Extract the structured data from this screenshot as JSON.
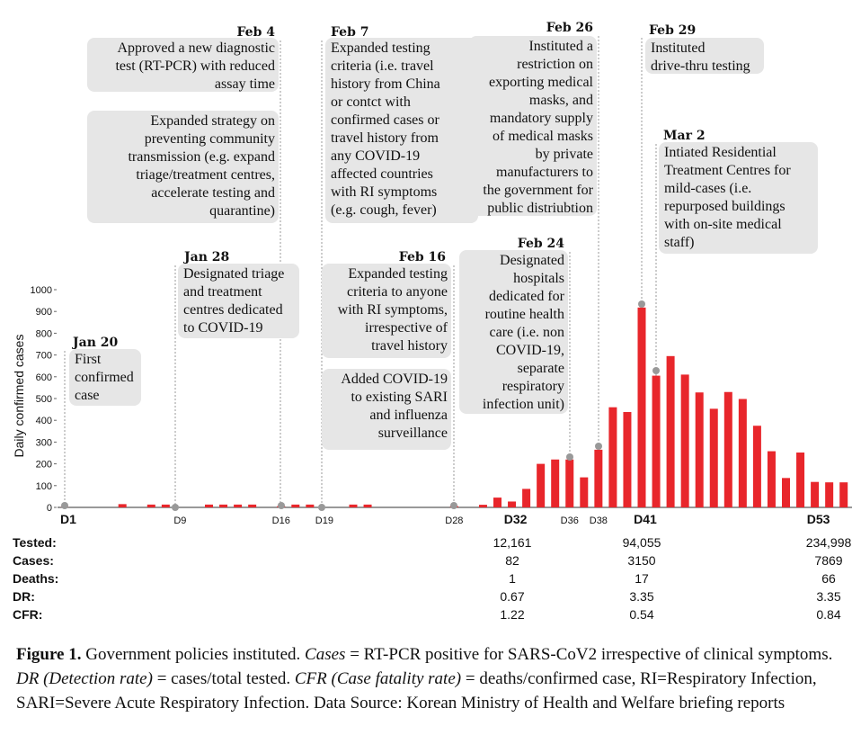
{
  "chart_data": {
    "type": "bar",
    "y_label": "Daily confirmed cases",
    "color": "#e8262b",
    "categories": [
      "D1",
      null,
      null,
      null,
      null,
      null,
      null,
      null,
      "D9",
      null,
      null,
      null,
      null,
      null,
      null,
      "D16",
      null,
      null,
      "D19",
      null,
      null,
      null,
      null,
      null,
      null,
      null,
      null,
      "D28",
      null,
      null,
      null,
      "D32",
      null,
      null,
      null,
      "D36",
      null,
      "D38",
      null,
      null,
      "D41",
      null,
      null,
      null,
      null,
      null,
      null,
      null,
      null,
      null,
      null,
      null,
      "D53",
      null,
      null
    ],
    "values": [
      1,
      0,
      0,
      0,
      15,
      0,
      13,
      13,
      0,
      0,
      13,
      13,
      13,
      13,
      0,
      6,
      13,
      13,
      0,
      0,
      13,
      13,
      0,
      0,
      0,
      0,
      0,
      6,
      0,
      12,
      45,
      27,
      85,
      200,
      220,
      220,
      138,
      265,
      460,
      438,
      918,
      605,
      695,
      610,
      528,
      453,
      530,
      498,
      375,
      258,
      135,
      252,
      117,
      115,
      115
    ],
    "ylim": [
      0,
      1000
    ],
    "yticks": [
      0,
      100,
      200,
      300,
      400,
      500,
      600,
      700,
      800,
      900,
      1000
    ],
    "grid": false
  },
  "annotations": [
    {
      "date": "Feb 4",
      "boxes": [
        [
          "Approved a new diagnostic",
          "test (RT-PCR) with reduced",
          "assay time"
        ],
        [
          "Expanded strategy on",
          "preventing community",
          "transmission (e.g. expand",
          "triage/treatment centres,",
          "accelerate testing and",
          "quarantine)"
        ]
      ]
    },
    {
      "date": "Feb 7",
      "boxes": [
        [
          "Expanded testing",
          "criteria (i.e. travel",
          "history from China",
          "or contct with",
          "confirmed cases or",
          "travel history from",
          "any COVID-19",
          "affected countries",
          "with RI symptoms",
          "(e.g. cough, fever)"
        ]
      ]
    },
    {
      "date": "Feb 26",
      "boxes": [
        [
          "Instituted a",
          "restriction on",
          "exporting medical",
          "masks, and",
          "mandatory supply",
          "of medical masks",
          "by private",
          "manufacturers to",
          "the government for",
          "public distriubtion"
        ]
      ]
    },
    {
      "date": "Feb 29",
      "boxes": [
        [
          "Instituted",
          "drive-thru testing"
        ]
      ]
    },
    {
      "date": "Mar 2",
      "boxes": [
        [
          "Intiated Residential",
          "Treatment Centres for",
          "mild-cases (i.e.",
          "repurposed buildings",
          "with on-site medical",
          "staff)"
        ]
      ]
    },
    {
      "date": "Feb 24",
      "boxes": [
        [
          "Designated",
          "hospitals",
          "dedicated for",
          "routine health",
          "care (i.e. non",
          "COVID-19,",
          "separate",
          "respiratory",
          "infection unit)"
        ]
      ]
    },
    {
      "date": "Jan 28",
      "boxes": [
        [
          "Designated triage",
          "and treatment",
          "centres dedicated",
          "to COVID-19"
        ]
      ]
    },
    {
      "date": "Feb 16",
      "boxes": [
        [
          "Expanded testing",
          "criteria to anyone",
          "with RI symptoms,",
          "irrespective of",
          "travel history"
        ],
        [
          "Added COVID-19",
          "to existing SARI",
          "and influenza",
          "surveillance"
        ]
      ]
    },
    {
      "date": "Jan 20",
      "boxes": [
        [
          "First",
          "confirmed",
          "case"
        ]
      ]
    }
  ],
  "table": {
    "rows": [
      [
        "Tested:",
        "12,161",
        "94,055",
        "234,998"
      ],
      [
        "Cases:",
        "82",
        "3150",
        "7869"
      ],
      [
        "Deaths:",
        "1",
        "17",
        "66"
      ],
      [
        "DR:",
        "0.67",
        "3.35",
        "3.35"
      ],
      [
        "CFR:",
        "1.22",
        "0.54",
        "0.84"
      ]
    ]
  },
  "caption": {
    "label": "Figure 1.",
    "segments": [
      {
        "text": " Government policies instituted. ",
        "italic": false
      },
      {
        "text": "Cases",
        "italic": true
      },
      {
        "text": " = RT-PCR positive for SARS-CoV2 irrespective of clinical symptoms. ",
        "italic": false
      },
      {
        "text": "DR (Detection rate)",
        "italic": true
      },
      {
        "text": " = cases/total tested. ",
        "italic": false
      },
      {
        "text": "CFR (Case fatality rate)",
        "italic": true
      },
      {
        "text": " = deaths/confirmed case, RI=Respiratory Infection, SARI=Severe Acute Respiratory Infection. Data Source: Korean Ministry of Health and Welfare briefing reports",
        "italic": false
      }
    ]
  }
}
